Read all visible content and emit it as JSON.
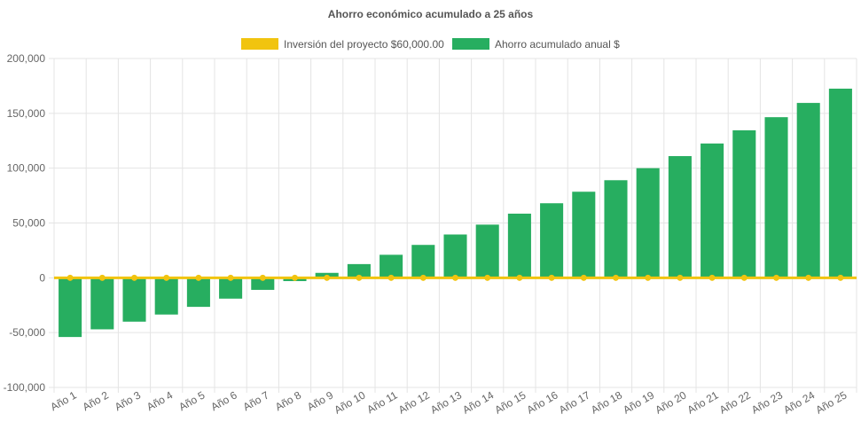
{
  "chart_data": {
    "type": "bar",
    "title": "Ahorro económico acumulado a 25 años",
    "legend_position": "top",
    "grid": true,
    "categories": [
      "Año 1",
      "Año 2",
      "Año 3",
      "Año 4",
      "Año 5",
      "Año 6",
      "Año 7",
      "Año 8",
      "Año 9",
      "Año 10",
      "Año 11",
      "Año 12",
      "Año 13",
      "Año 14",
      "Año 15",
      "Año 16",
      "Año 17",
      "Año 18",
      "Año 19",
      "Año 20",
      "Año 21",
      "Año 22",
      "Año 23",
      "Año 24",
      "Año 25"
    ],
    "ylim": [
      -100000,
      200000
    ],
    "yticks": [
      200000,
      150000,
      100000,
      50000,
      0,
      -50000,
      -100000
    ],
    "ytick_labels": [
      "200,000",
      "150,000",
      "100,000",
      "50,000",
      "0",
      "-50,000",
      "-100,000"
    ],
    "series": [
      {
        "name": "Inversión del proyecto $60,000.00",
        "type": "line",
        "color": "#f1c40f",
        "values": [
          0,
          0,
          0,
          0,
          0,
          0,
          0,
          0,
          0,
          0,
          0,
          0,
          0,
          0,
          0,
          0,
          0,
          0,
          0,
          0,
          0,
          0,
          0,
          0,
          0
        ]
      },
      {
        "name": "Ahorro acumulado anual $",
        "type": "bar",
        "color": "#27ae60",
        "values": [
          -54000,
          -47000,
          -40000,
          -33500,
          -26500,
          -19000,
          -11000,
          -3000,
          4500,
          12500,
          21000,
          30000,
          39500,
          48500,
          58500,
          68000,
          78500,
          89000,
          100000,
          111000,
          122500,
          134500,
          146500,
          159500,
          172500
        ]
      }
    ]
  }
}
